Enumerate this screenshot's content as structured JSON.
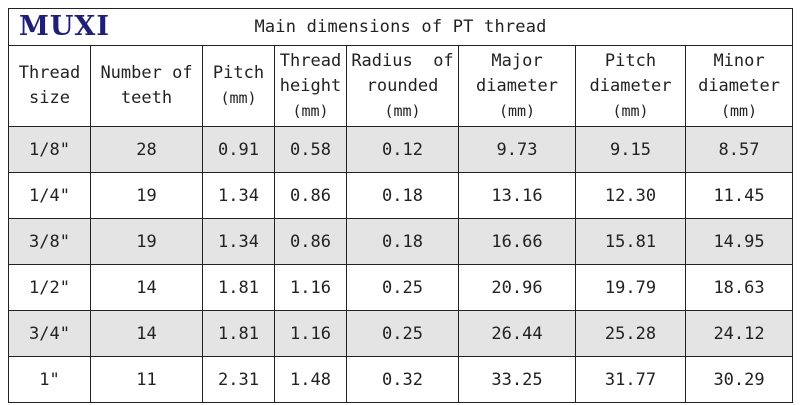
{
  "logo": {
    "text": "MUXI"
  },
  "title": "Main dimensions of PT thread",
  "columns": [
    {
      "line1": "Thread",
      "line2": "size",
      "unit": ""
    },
    {
      "line1": "Number of",
      "line2": "teeth",
      "unit": ""
    },
    {
      "line1": "Pitch",
      "line2": "",
      "unit": "(mm)"
    },
    {
      "line1": "Thread",
      "line2": "height",
      "unit": "(mm)"
    },
    {
      "line1": "Radius  of",
      "line2": "rounded",
      "unit": "(mm)"
    },
    {
      "line1": "Major",
      "line2": "diameter",
      "unit": "(mm)"
    },
    {
      "line1": "Pitch",
      "line2": "diameter",
      "unit": "(mm)"
    },
    {
      "line1": "Minor",
      "line2": "diameter",
      "unit": "(mm)"
    }
  ],
  "rows": [
    [
      "1/8\"",
      "28",
      "0.91",
      "0.58",
      "0.12",
      "9.73",
      "9.15",
      "8.57"
    ],
    [
      "1/4\"",
      "19",
      "1.34",
      "0.86",
      "0.18",
      "13.16",
      "12.30",
      "11.45"
    ],
    [
      "3/8\"",
      "19",
      "1.34",
      "0.86",
      "0.18",
      "16.66",
      "15.81",
      "14.95"
    ],
    [
      "1/2\"",
      "14",
      "1.81",
      "1.16",
      "0.25",
      "20.96",
      "19.79",
      "18.63"
    ],
    [
      "3/4\"",
      "14",
      "1.81",
      "1.16",
      "0.25",
      "26.44",
      "25.28",
      "24.12"
    ],
    [
      "1\"",
      "11",
      "2.31",
      "1.48",
      "0.32",
      "33.25",
      "31.77",
      "30.29"
    ]
  ],
  "colors": {
    "shaded_row": "#e4e4e4",
    "logo": "#1f1f7a",
    "border": "#222222"
  }
}
